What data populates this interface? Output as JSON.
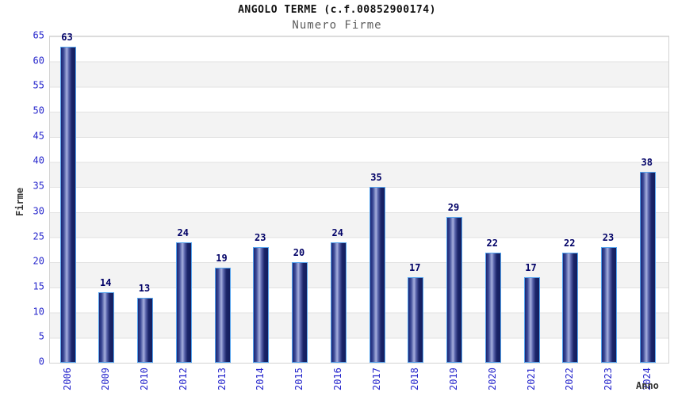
{
  "header": {
    "title": "ANGOLO TERME (c.f.00852900174)",
    "subtitle": "Numero Firme"
  },
  "chart_data": {
    "type": "bar",
    "title": "ANGOLO TERME (c.f.00852900174)",
    "subtitle": "Numero Firme",
    "categories": [
      "2006",
      "2009",
      "2010",
      "2012",
      "2013",
      "2014",
      "2015",
      "2016",
      "2017",
      "2018",
      "2019",
      "2020",
      "2021",
      "2022",
      "2023",
      "2024"
    ],
    "values": [
      63,
      14,
      13,
      24,
      19,
      23,
      20,
      24,
      35,
      17,
      29,
      22,
      17,
      22,
      23,
      38
    ],
    "xlabel": "Anno",
    "ylabel": "Firme",
    "ylim": [
      0,
      65
    ],
    "y_ticks": [
      0,
      5,
      10,
      15,
      20,
      25,
      30,
      35,
      40,
      45,
      50,
      55,
      60,
      65
    ],
    "grid": "alternating horizontal bands every 5 units",
    "legend_position": "none",
    "colors": {
      "bar_dark": "#1b2574",
      "bar_highlight": "#a6afde",
      "bar_border": "#55a4ee",
      "tick_label": "#2626cc",
      "value_label": "#000066",
      "band_gray": "#f3f3f3",
      "gridline": "#e2e2e2",
      "axis_title": "#333333",
      "subtitle_gray": "#5c5c5c"
    }
  }
}
